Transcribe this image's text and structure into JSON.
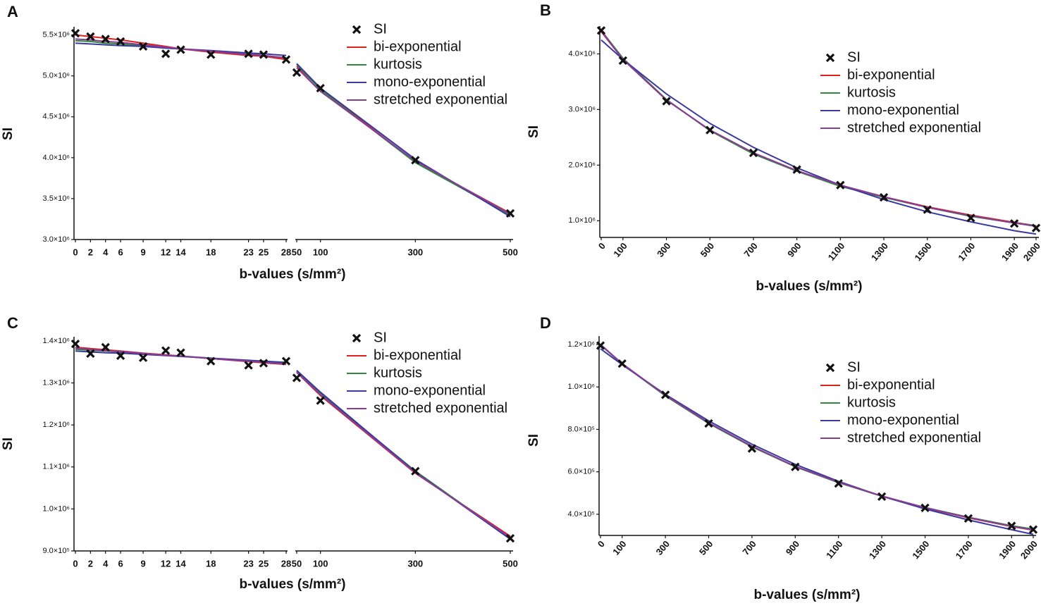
{
  "chart_data": [
    {
      "type": "line",
      "panel": "A",
      "xlabel": "b-values (s/mm²)",
      "ylabel": "SI",
      "x": [
        0,
        2,
        4,
        6,
        9,
        12,
        14,
        18,
        23,
        25,
        28,
        50,
        100,
        300,
        500
      ],
      "xlim": [
        0,
        500
      ],
      "xbreak": [
        28,
        50
      ],
      "xticks": [
        0,
        2,
        4,
        6,
        9,
        12,
        14,
        18,
        23,
        25,
        28,
        50,
        100,
        300,
        500
      ],
      "ylim": [
        3000000,
        5600000
      ],
      "yticks": [
        {
          "value": 3000000,
          "label": "3.0×10⁶"
        },
        {
          "value": 3500000,
          "label": "3.5×10⁶"
        },
        {
          "value": 4000000,
          "label": "4.0×10⁶"
        },
        {
          "value": 4500000,
          "label": "4.5×10⁶"
        },
        {
          "value": 5000000,
          "label": "5.0×10⁶"
        },
        {
          "value": 5500000,
          "label": "5.5×10⁶"
        }
      ],
      "series": [
        {
          "name": "SI",
          "color": "#111111",
          "marker": "x",
          "values": [
            5520000,
            5480000,
            5450000,
            5420000,
            5360000,
            5270000,
            5320000,
            5260000,
            5270000,
            5260000,
            5200000,
            5040000,
            4850000,
            3970000,
            3320000
          ]
        },
        {
          "name": "bi-exponential",
          "color": "#e0201c",
          "values": [
            5500000,
            5480000,
            5460000,
            5440000,
            5400000,
            5360000,
            5330000,
            5290000,
            5250000,
            5240000,
            5200000,
            5120000,
            4840000,
            3950000,
            3320000
          ]
        },
        {
          "name": "kurtosis",
          "color": "#2e8b3a",
          "values": [
            5430000,
            5420000,
            5400000,
            5390000,
            5370000,
            5340000,
            5330000,
            5300000,
            5270000,
            5250000,
            5220000,
            5140000,
            4830000,
            3940000,
            3300000
          ]
        },
        {
          "name": "mono-exponential",
          "color": "#3a3a9e",
          "values": [
            5400000,
            5390000,
            5380000,
            5370000,
            5360000,
            5340000,
            5330000,
            5310000,
            5280000,
            5270000,
            5250000,
            5150000,
            4850000,
            3980000,
            3280000
          ]
        },
        {
          "name": "stretched exponential",
          "color": "#8a3a98",
          "values": [
            5450000,
            5440000,
            5420000,
            5410000,
            5380000,
            5350000,
            5330000,
            5300000,
            5260000,
            5250000,
            5220000,
            5100000,
            4810000,
            3960000,
            3310000
          ]
        }
      ]
    },
    {
      "type": "line",
      "panel": "B",
      "xlabel": "b-values (s/mm²)",
      "ylabel": "SI",
      "x": [
        0,
        100,
        300,
        500,
        700,
        900,
        1100,
        1300,
        1500,
        1700,
        1900,
        2000
      ],
      "xlim": [
        0,
        2000
      ],
      "xticks": [
        0,
        100,
        300,
        500,
        700,
        900,
        1100,
        1300,
        1500,
        1700,
        1900,
        2000
      ],
      "ylim": [
        700000,
        4500000
      ],
      "yticks": [
        {
          "value": 1000000,
          "label": "1.0×10⁶"
        },
        {
          "value": 2000000,
          "label": "2.0×10⁶"
        },
        {
          "value": 3000000,
          "label": "3.0×10⁶"
        },
        {
          "value": 4000000,
          "label": "4.0×10⁶"
        }
      ],
      "series": [
        {
          "name": "SI",
          "color": "#111111",
          "marker": "x",
          "values": [
            4420000,
            3880000,
            3150000,
            2630000,
            2220000,
            1920000,
            1640000,
            1420000,
            1200000,
            1050000,
            950000,
            870000
          ]
        },
        {
          "name": "bi-exponential",
          "color": "#e0201c",
          "values": [
            4400000,
            3900000,
            3170000,
            2630000,
            2220000,
            1900000,
            1640000,
            1430000,
            1250000,
            1100000,
            970000,
            910000
          ]
        },
        {
          "name": "kurtosis",
          "color": "#2e8b3a",
          "values": [
            4420000,
            3920000,
            3180000,
            2620000,
            2200000,
            1890000,
            1620000,
            1420000,
            1240000,
            1080000,
            960000,
            910000
          ]
        },
        {
          "name": "mono-exponential",
          "color": "#3a3a9e",
          "values": [
            4250000,
            3900000,
            3280000,
            2750000,
            2320000,
            1950000,
            1640000,
            1380000,
            1160000,
            980000,
            820000,
            760000
          ]
        },
        {
          "name": "stretched exponential",
          "color": "#8a3a98",
          "values": [
            4410000,
            3900000,
            3170000,
            2630000,
            2220000,
            1900000,
            1640000,
            1430000,
            1240000,
            1090000,
            960000,
            900000
          ]
        }
      ]
    },
    {
      "type": "line",
      "panel": "C",
      "xlabel": "b-values (s/mm²)",
      "ylabel": "SI",
      "x": [
        0,
        2,
        4,
        6,
        9,
        12,
        14,
        18,
        23,
        25,
        28,
        50,
        100,
        300,
        500
      ],
      "xlim": [
        0,
        500
      ],
      "xbreak": [
        28,
        50
      ],
      "xticks": [
        0,
        2,
        4,
        6,
        9,
        12,
        14,
        18,
        23,
        25,
        28,
        50,
        100,
        300,
        500
      ],
      "ylim": [
        900000,
        1410000
      ],
      "yticks": [
        {
          "value": 900000,
          "label": "9.0×10⁵"
        },
        {
          "value": 1000000,
          "label": "1.0×10⁶"
        },
        {
          "value": 1100000,
          "label": "1.1×10⁶"
        },
        {
          "value": 1200000,
          "label": "1.2×10⁶"
        },
        {
          "value": 1300000,
          "label": "1.3×10⁶"
        },
        {
          "value": 1400000,
          "label": "1.4×10⁶"
        }
      ],
      "series": [
        {
          "name": "SI",
          "color": "#111111",
          "marker": "x",
          "values": [
            1393000,
            1370000,
            1385000,
            1365000,
            1360000,
            1377000,
            1372000,
            1352000,
            1342000,
            1347000,
            1352000,
            1312000,
            1258000,
            1090000,
            930000
          ]
        },
        {
          "name": "bi-exponential",
          "color": "#e0201c",
          "values": [
            1385000,
            1382000,
            1379000,
            1376000,
            1371000,
            1367000,
            1364000,
            1358000,
            1351000,
            1348000,
            1344000,
            1325000,
            1270000,
            1085000,
            935000
          ]
        },
        {
          "name": "kurtosis",
          "color": "#2e8b3a",
          "values": [
            1380000,
            1378000,
            1376000,
            1374000,
            1370000,
            1366000,
            1364000,
            1359000,
            1352000,
            1350000,
            1346000,
            1328000,
            1275000,
            1090000,
            930000
          ]
        },
        {
          "name": "mono-exponential",
          "color": "#3a3a9e",
          "values": [
            1376000,
            1374000,
            1372000,
            1371000,
            1368000,
            1365000,
            1363000,
            1359000,
            1354000,
            1352000,
            1349000,
            1330000,
            1278000,
            1088000,
            928000
          ]
        },
        {
          "name": "stretched exponential",
          "color": "#8a3a98",
          "values": [
            1383000,
            1380000,
            1377000,
            1375000,
            1370000,
            1366000,
            1364000,
            1358000,
            1352000,
            1349000,
            1345000,
            1326000,
            1272000,
            1086000,
            932000
          ]
        }
      ]
    },
    {
      "type": "line",
      "panel": "D",
      "xlabel": "b-values (s/mm²)",
      "ylabel": "SI",
      "x": [
        0,
        100,
        300,
        500,
        700,
        900,
        1100,
        1300,
        1500,
        1700,
        1900,
        2000
      ],
      "xlim": [
        0,
        2000
      ],
      "xticks": [
        0,
        100,
        300,
        500,
        700,
        900,
        1100,
        1300,
        1500,
        1700,
        1900,
        2000
      ],
      "ylim": [
        300000,
        1240000
      ],
      "yticks": [
        {
          "value": 400000,
          "label": "4.0×10⁵"
        },
        {
          "value": 600000,
          "label": "6.0×10⁵"
        },
        {
          "value": 800000,
          "label": "8.0×10⁵"
        },
        {
          "value": 1000000,
          "label": "1.0×10⁶"
        },
        {
          "value": 1200000,
          "label": "1.2×10⁶"
        }
      ],
      "series": [
        {
          "name": "SI",
          "color": "#111111",
          "marker": "x",
          "values": [
            1195000,
            1110000,
            963000,
            828000,
            710000,
            623000,
            545000,
            483000,
            430000,
            380000,
            345000,
            328000
          ]
        },
        {
          "name": "bi-exponential",
          "color": "#e0201c",
          "values": [
            1200000,
            1110000,
            960000,
            830000,
            720000,
            625000,
            550000,
            485000,
            430000,
            383000,
            342000,
            325000
          ]
        },
        {
          "name": "kurtosis",
          "color": "#2e8b3a",
          "values": [
            1198000,
            1108000,
            958000,
            828000,
            718000,
            624000,
            549000,
            485000,
            432000,
            386000,
            346000,
            330000
          ]
        },
        {
          "name": "mono-exponential",
          "color": "#3a3a9e",
          "values": [
            1180000,
            1105000,
            965000,
            840000,
            730000,
            635000,
            555000,
            485000,
            425000,
            373000,
            327000,
            305000
          ]
        },
        {
          "name": "stretched exponential",
          "color": "#8a3a98",
          "values": [
            1200000,
            1110000,
            961000,
            831000,
            721000,
            626000,
            551000,
            486000,
            431000,
            384000,
            343000,
            326000
          ]
        }
      ]
    }
  ]
}
